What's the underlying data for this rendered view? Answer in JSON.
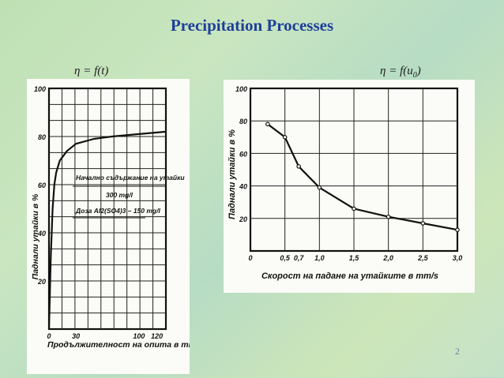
{
  "title": "Precipitation Processes",
  "formula_left": {
    "prefix": "η = f(t)"
  },
  "formula_right": {
    "prefix": "η = f(u",
    "sub": "0",
    "suffix": ")"
  },
  "page_number": "2",
  "chart_data": [
    {
      "type": "line",
      "xlabel": "Продължителност на опита в min",
      "ylabel": "Паднали утайки в %",
      "x_ticks": [
        "0",
        "30",
        "100",
        "120"
      ],
      "y_ticks": [
        "20",
        "40",
        "60",
        "80",
        "100"
      ],
      "xlim": [
        0,
        130
      ],
      "ylim": [
        0,
        100
      ],
      "annotation_lines": [
        "Начално съдържание на утайки",
        "300 mg/l",
        "Доза Al2(SO4)3 – 150 mg/l"
      ],
      "series": [
        {
          "x": [
            0,
            2,
            4,
            6,
            8,
            12,
            20,
            30,
            50,
            70,
            100,
            130
          ],
          "y": [
            0,
            30,
            50,
            60,
            65,
            70,
            74,
            77,
            79,
            80,
            81,
            82
          ]
        }
      ]
    },
    {
      "type": "line",
      "xlabel": "Скорост на падане на утайките в mm/s",
      "ylabel": "Паднали утайки в %",
      "x_ticks": [
        "0",
        "0,5",
        "0,7",
        "1,0",
        "1,5",
        "2,0",
        "2,5",
        "3,0"
      ],
      "y_ticks": [
        "20",
        "40",
        "60",
        "80",
        "100"
      ],
      "xlim": [
        0,
        3
      ],
      "ylim": [
        0,
        100
      ],
      "series": [
        {
          "x": [
            0.25,
            0.5,
            0.7,
            1.0,
            1.5,
            2.0,
            2.5,
            3.0
          ],
          "y": [
            78,
            70,
            52,
            39,
            26,
            21,
            17,
            13
          ]
        }
      ]
    }
  ]
}
